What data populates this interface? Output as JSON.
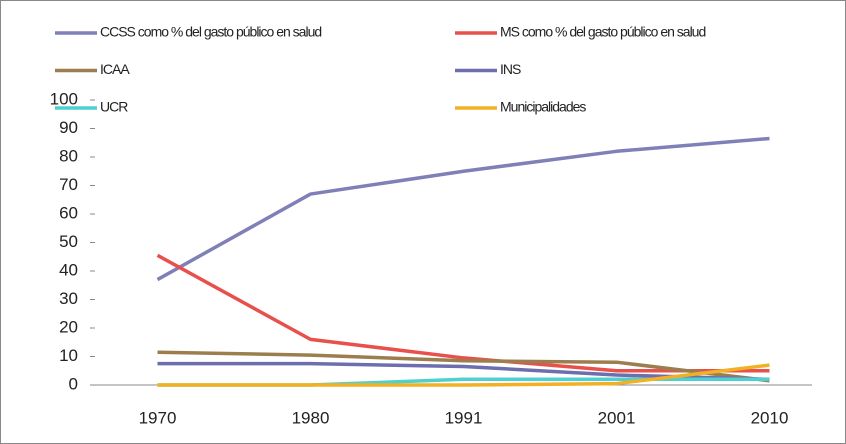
{
  "chart_data": {
    "type": "line",
    "categories": [
      "1970",
      "1980",
      "1991",
      "2001",
      "2010"
    ],
    "series": [
      {
        "name": "CCSS como % del gasto público en salud",
        "color": "#8080b8",
        "values": [
          37,
          67,
          75,
          82,
          86.5
        ]
      },
      {
        "name": "MS como % del gasto público en salud",
        "color": "#e8504c",
        "values": [
          45.5,
          16,
          9.5,
          5,
          5
        ]
      },
      {
        "name": "ICAA",
        "color": "#9c7e4e",
        "values": [
          11.5,
          10.5,
          8.5,
          8,
          1.5
        ]
      },
      {
        "name": "INS",
        "color": "#6e6eae",
        "values": [
          7.5,
          7.5,
          6.5,
          3.5,
          2
        ]
      },
      {
        "name": "UCR",
        "color": "#4fd0d0",
        "values": [
          0,
          0,
          2,
          2,
          2
        ]
      },
      {
        "name": "Municipalidades",
        "color": "#f2b024",
        "values": [
          0,
          0,
          0,
          0.5,
          7
        ]
      }
    ],
    "ylim": [
      0,
      100
    ],
    "yticks": [
      0,
      10,
      20,
      30,
      40,
      50,
      60,
      70,
      80,
      90,
      100
    ],
    "grid": false,
    "legend": "top"
  }
}
